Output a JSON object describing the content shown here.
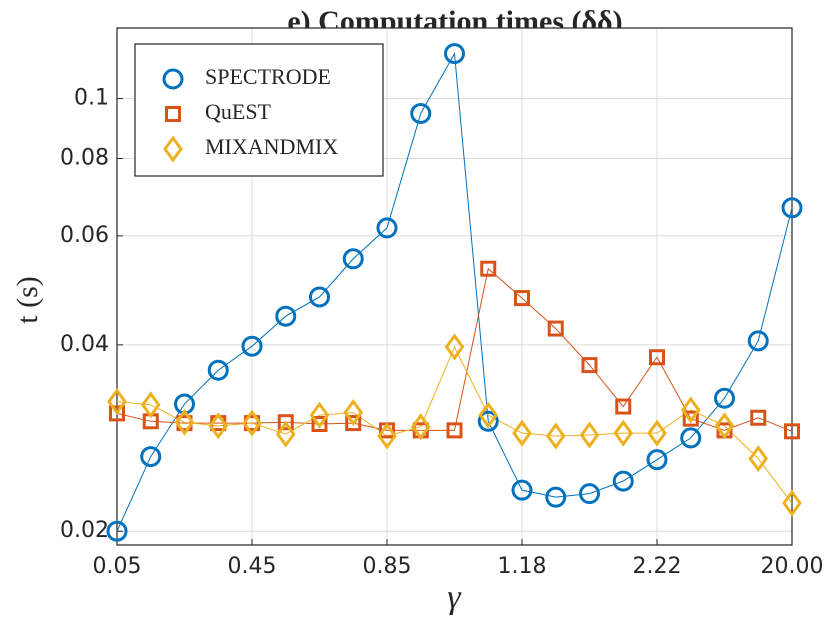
{
  "chart_data": {
    "type": "line",
    "title": "e) Computation times (δδ)",
    "xlabel": "γ",
    "ylabel": "t (s)",
    "categories": [
      "0.05",
      null,
      null,
      null,
      "0.45",
      null,
      null,
      null,
      "0.85",
      null,
      null,
      null,
      "1.18",
      null,
      null,
      null,
      "2.22",
      null,
      null,
      null,
      "20.00"
    ],
    "ylim": [
      0.019,
      0.13
    ],
    "yticks": [
      0.02,
      0.04,
      0.06,
      0.08,
      0.1
    ],
    "log_y": true,
    "grid": true,
    "legend": "upper left",
    "series": [
      {
        "name": "SPECTRODE",
        "color": "#0072bd",
        "marker": "circle",
        "values": [
          0.02,
          0.0264,
          0.0321,
          0.0364,
          0.0398,
          0.0445,
          0.0478,
          0.0551,
          0.0618,
          0.0946,
          0.1182,
          0.0301,
          0.0233,
          0.0227,
          0.023,
          0.0241,
          0.0261,
          0.0283,
          0.0328,
          0.0406,
          0.0666
        ]
      },
      {
        "name": "QuEST",
        "color": "#d95319",
        "marker": "square",
        "values": [
          0.031,
          0.0301,
          0.0299,
          0.0299,
          0.0299,
          0.03,
          0.0298,
          0.0299,
          0.0291,
          0.0291,
          0.0291,
          0.0531,
          0.0476,
          0.0425,
          0.0371,
          0.0318,
          0.0382,
          0.0304,
          0.0291,
          0.0305,
          0.029
        ]
      },
      {
        "name": "MIXANDMIX",
        "color": "#edb120",
        "marker": "diamond",
        "values": [
          0.0324,
          0.032,
          0.03,
          0.0296,
          0.0299,
          0.0287,
          0.0308,
          0.0311,
          0.0285,
          0.0295,
          0.0397,
          0.0308,
          0.0288,
          0.0285,
          0.0286,
          0.0288,
          0.0288,
          0.0314,
          0.0296,
          0.0262,
          0.0222
        ]
      }
    ]
  }
}
